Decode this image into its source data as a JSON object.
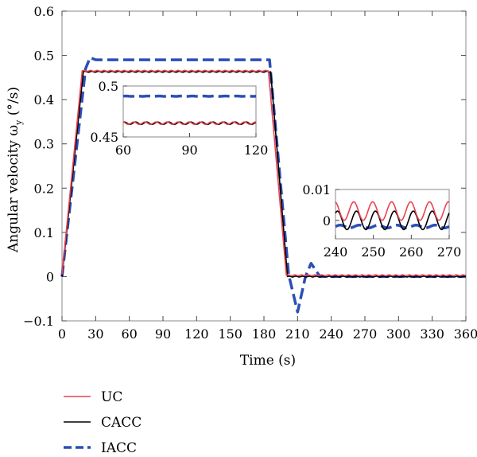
{
  "chart_data": {
    "type": "line",
    "xlabel": "Time (s)",
    "ylabel": "Angular velocity ω",
    "ylabel_sub": "y",
    "ylabel_unit": " (°/s)",
    "xlim": [
      0,
      360
    ],
    "ylim": [
      -0.1,
      0.6
    ],
    "xticks": [
      "0",
      "30",
      "60",
      "90",
      "120",
      "150",
      "180",
      "210",
      "240",
      "270",
      "300",
      "330",
      "360"
    ],
    "yticks": [
      "−0.1",
      "0",
      "0.1",
      "0.2",
      "0.3",
      "0.4",
      "0.5",
      "0.6"
    ],
    "grid": false,
    "legend_position": "below-left",
    "series": [
      {
        "name": "UC",
        "color": "#e8434f",
        "style": "solid",
        "points": [
          [
            0,
            0.005
          ],
          [
            18,
            0.465
          ],
          [
            184,
            0.465
          ],
          [
            200,
            0.003
          ],
          [
            360,
            0.003
          ]
        ]
      },
      {
        "name": "CACC",
        "color": "#000000",
        "style": "solid",
        "points": [
          [
            0,
            0.0
          ],
          [
            19,
            0.463
          ],
          [
            186,
            0.463
          ],
          [
            201,
            0.0
          ],
          [
            360,
            0.0
          ]
        ]
      },
      {
        "name": "IACC",
        "color": "#2b4fb5",
        "style": "dashed",
        "points": [
          [
            0,
            0.0
          ],
          [
            21,
            0.47
          ],
          [
            25,
            0.495
          ],
          [
            30,
            0.49
          ],
          [
            185,
            0.49
          ],
          [
            202,
            0.005
          ],
          [
            210,
            -0.08
          ],
          [
            217,
            0.0
          ],
          [
            222,
            0.03
          ],
          [
            230,
            0.0
          ],
          [
            360,
            0.0
          ]
        ]
      }
    ],
    "insets": [
      {
        "xlim": [
          60,
          120
        ],
        "ylim": [
          0.45,
          0.5
        ],
        "xticks": [
          "60",
          "90",
          "120"
        ],
        "yticks": [
          "0.45",
          "0.5"
        ],
        "series_levels": {
          "IACC": 0.49,
          "CACC": 0.4635,
          "UC": 0.4635
        },
        "amplitude": 0.0012
      },
      {
        "xlim": [
          240,
          270
        ],
        "ylim": [
          -0.006,
          0.01
        ],
        "xticks": [
          "240",
          "250",
          "260",
          "270"
        ],
        "yticks": [
          "0",
          "0.01"
        ],
        "series_levels": {
          "UC": 0.003,
          "CACC": 0.0,
          "IACC": -0.002
        },
        "amplitude": 0.003
      }
    ]
  }
}
